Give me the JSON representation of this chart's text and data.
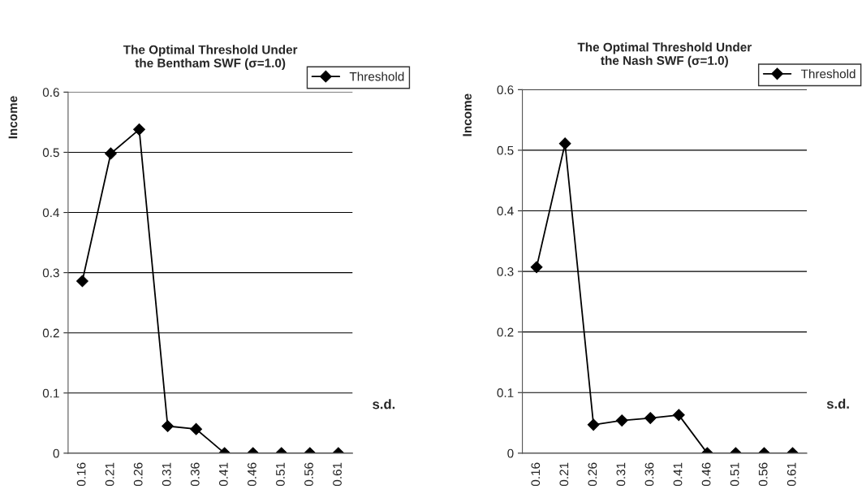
{
  "chart_data": [
    {
      "type": "line",
      "title": "The Optimal Threshold Under\nthe Bentham SWF (σ=1.0)",
      "xlabel": "s.d.",
      "ylabel": "Income",
      "categories": [
        "0.16",
        "0.21",
        "0.26",
        "0.31",
        "0.36",
        "0.41",
        "0.46",
        "0.51",
        "0.56",
        "0.61"
      ],
      "series": [
        {
          "name": "Threshold",
          "color": "#000000",
          "values": [
            0.286,
            0.498,
            0.538,
            0.045,
            0.04,
            0,
            0,
            0,
            0,
            0
          ]
        }
      ],
      "ylim": [
        0,
        0.6
      ],
      "yticks": [
        {
          "value": 0,
          "label": "0"
        },
        0.1,
        0.2,
        0.3,
        0.4,
        0.5,
        0.6
      ],
      "grid": "y",
      "legend": "top right",
      "marker": "diamond",
      "line_style": "solid"
    },
    {
      "type": "line",
      "title": "The Optimal Threshold Under\nthe Nash SWF (σ=1.0)",
      "xlabel": "s.d.",
      "ylabel": "Income",
      "categories": [
        "0.16",
        "0.21",
        "0.26",
        "0.31",
        "0.36",
        "0.41",
        "0.46",
        "0.51",
        "0.56",
        "0.61"
      ],
      "series": [
        {
          "name": "Threshold",
          "color": "#000000",
          "values": [
            0.307,
            0.511,
            0.047,
            0.054,
            0.058,
            0.063,
            0,
            0,
            0,
            0
          ]
        }
      ],
      "ylim": [
        0,
        0.6
      ],
      "yticks": [
        {
          "value": 0,
          "label": "0"
        },
        0.1,
        0.2,
        0.3,
        0.4,
        0.5,
        0.6
      ],
      "grid": "y",
      "legend": "top right",
      "marker": "diamond",
      "line_style": "solid"
    }
  ]
}
